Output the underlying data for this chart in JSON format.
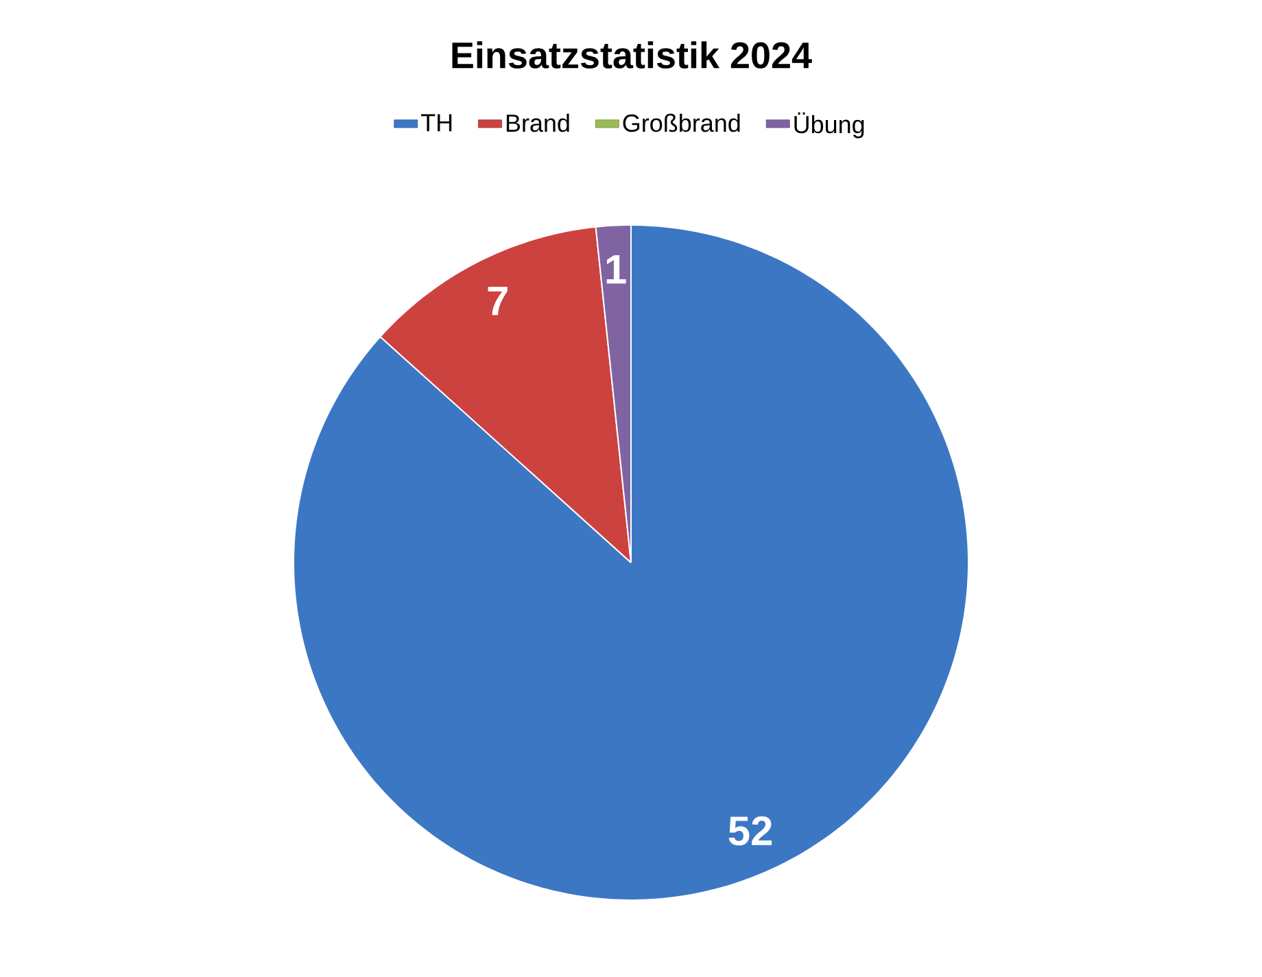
{
  "chart_data": {
    "type": "pie",
    "title": "Einsatzstatistik 2024",
    "categories": [
      "TH",
      "Brand",
      "Großbrand",
      "Übung"
    ],
    "values": [
      52,
      7,
      0,
      1
    ],
    "colors": [
      "#3c77c4",
      "#cc423f",
      "#9bbb59",
      "#8064a2"
    ],
    "value_labels": [
      "52",
      "7",
      null,
      "1"
    ],
    "legend": "top"
  }
}
